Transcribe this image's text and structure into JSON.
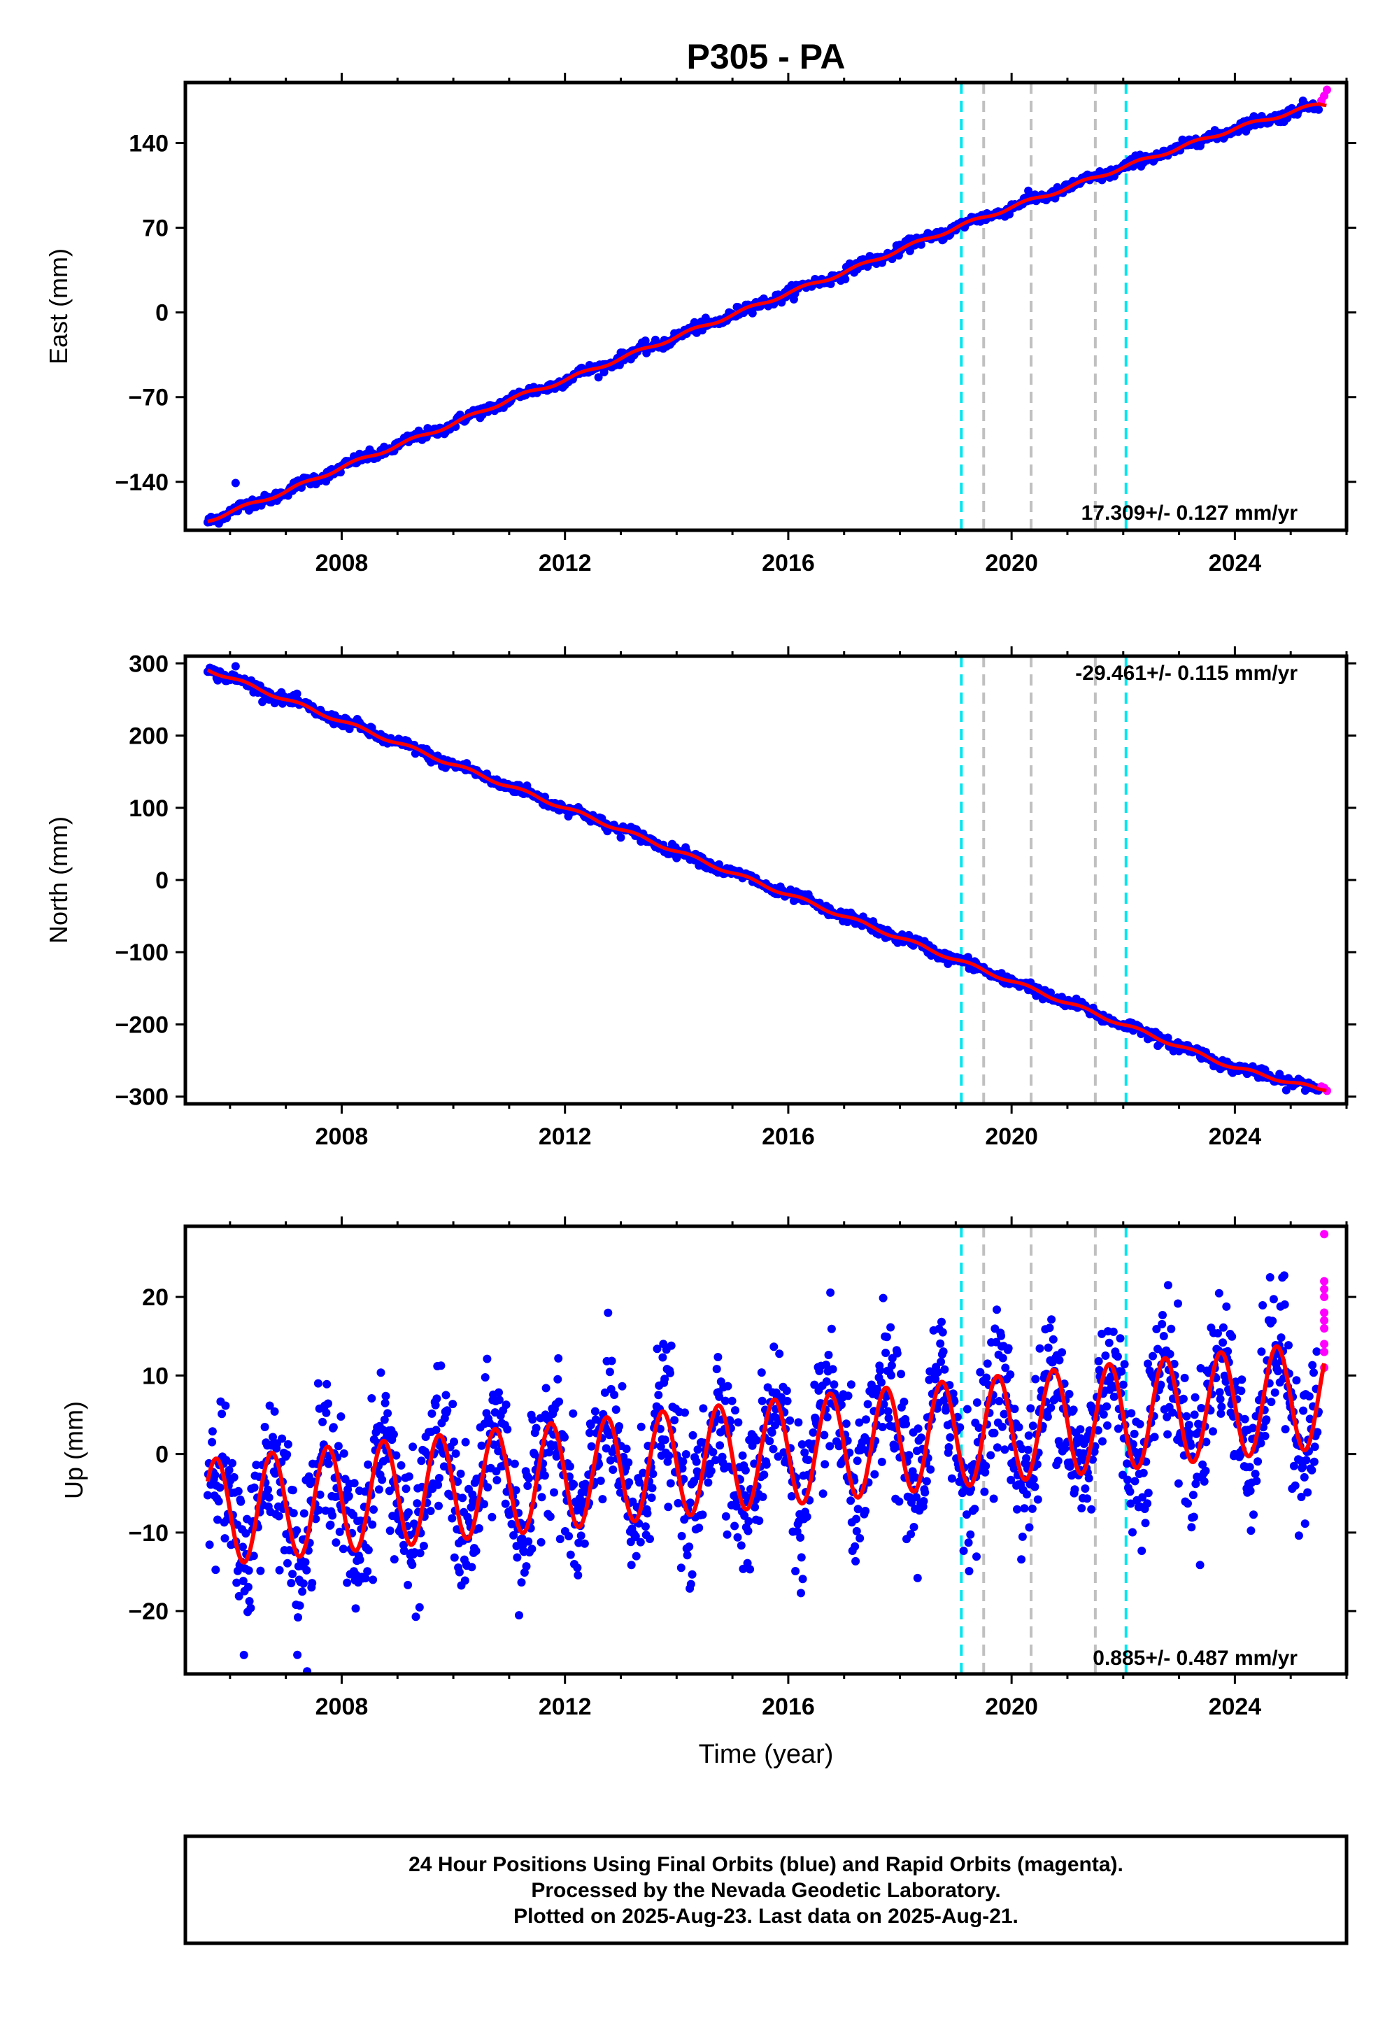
{
  "figure": {
    "title": "P305 - PA",
    "xlabel": "Time (year)",
    "caption_lines": [
      "24 Hour Positions Using Final Orbits (blue) and Rapid Orbits (magenta).",
      "Processed by the Nevada Geodetic Laboratory.",
      "Plotted on 2025-Aug-23. Last data on 2025-Aug-21."
    ]
  },
  "colors": {
    "final_orbits": "#0000ff",
    "rapid_orbits": "#ff00ff",
    "model_fit": "#ff0000",
    "equipment_change": "#00e5ee",
    "other_event": "#c0c0c0"
  },
  "chart_data": [
    {
      "type": "scatter",
      "id": "east",
      "ylabel": "East (mm)",
      "rate_label": "17.309+/- 0.127 mm/yr",
      "xlim": [
        2005.2,
        2026.0
      ],
      "ylim": [
        -180,
        190
      ],
      "xticks": [
        2008,
        2012,
        2016,
        2020,
        2024
      ],
      "yticks": [
        -140,
        -70,
        0,
        70,
        140
      ],
      "grid": false,
      "series": [
        {
          "name": "Final Orbits",
          "color": "#0000ff",
          "x": [
            2005.6,
            2006.0,
            2007.0,
            2008.0,
            2009.0,
            2010.0,
            2011.0,
            2012.0,
            2013.0,
            2014.0,
            2015.0,
            2016.0,
            2017.0,
            2018.0,
            2019.0,
            2020.0,
            2021.0,
            2022.0,
            2023.0,
            2024.0,
            2025.5
          ],
          "y": [
            -172,
            -165,
            -148,
            -128,
            -110,
            -92,
            -72,
            -56,
            -38,
            -20,
            -2,
            16,
            33,
            52,
            70,
            87,
            103,
            120,
            136,
            152,
            172
          ]
        },
        {
          "name": "Rapid Orbits",
          "color": "#ff00ff",
          "x": [
            2025.55,
            2025.6,
            2025.65
          ],
          "y": [
            175,
            179,
            184
          ]
        },
        {
          "name": "Model",
          "color": "#ff0000",
          "x": [
            2005.6,
            2025.65
          ],
          "y": [
            -172,
            174
          ]
        }
      ],
      "outliers": [
        {
          "x": 2006.1,
          "y": -141
        }
      ]
    },
    {
      "type": "scatter",
      "id": "north",
      "ylabel": "North (mm)",
      "rate_label": "-29.461+/- 0.115 mm/yr",
      "xlim": [
        2005.2,
        2026.0
      ],
      "ylim": [
        -310,
        310
      ],
      "xticks": [
        2008,
        2012,
        2016,
        2020,
        2024
      ],
      "yticks": [
        -300,
        -200,
        -100,
        0,
        100,
        200,
        300
      ],
      "grid": false,
      "series": [
        {
          "name": "Final Orbits",
          "color": "#0000ff",
          "x": [
            2005.6,
            2006.0,
            2007.0,
            2008.0,
            2009.0,
            2010.0,
            2011.0,
            2012.0,
            2013.0,
            2014.0,
            2015.0,
            2016.0,
            2017.0,
            2018.0,
            2019.0,
            2020.0,
            2021.0,
            2022.0,
            2023.0,
            2024.0,
            2025.5
          ],
          "y": [
            292,
            280,
            250,
            220,
            190,
            160,
            130,
            100,
            70,
            40,
            10,
            -20,
            -50,
            -80,
            -110,
            -140,
            -170,
            -200,
            -230,
            -260,
            -290
          ]
        },
        {
          "name": "Rapid Orbits",
          "color": "#ff00ff",
          "x": [
            2025.55,
            2025.6,
            2025.65
          ],
          "y": [
            -286,
            -288,
            -292
          ]
        },
        {
          "name": "Model",
          "color": "#ff0000",
          "x": [
            2005.6,
            2025.65
          ],
          "y": [
            292,
            -292
          ]
        }
      ],
      "outliers": [
        {
          "x": 2006.1,
          "y": 296
        }
      ]
    },
    {
      "type": "scatter",
      "id": "up",
      "ylabel": "Up (mm)",
      "rate_label": "0.885+/- 0.487 mm/yr",
      "xlim": [
        2005.2,
        2026.0
      ],
      "ylim": [
        -28,
        29
      ],
      "xticks": [
        2008,
        2012,
        2016,
        2020,
        2024
      ],
      "yticks": [
        -20,
        -10,
        0,
        10,
        20
      ],
      "grid": false,
      "model": {
        "amplitude_mm": 6.8,
        "offset_mm": -7.5,
        "rate_mm_per_yr": 0.885,
        "peak_phase_year": 0.75
      },
      "series": [
        {
          "name": "Final Orbits",
          "color": "#0000ff",
          "x_range": [
            2005.6,
            2025.5
          ],
          "scatter_sd_mm": 4.5
        },
        {
          "name": "Rapid Orbits",
          "color": "#ff00ff",
          "x": [
            2025.6,
            2025.6,
            2025.6,
            2025.6,
            2025.6,
            2025.6,
            2025.6,
            2025.6,
            2025.6,
            2025.6
          ],
          "y": [
            28,
            22,
            21,
            20,
            18,
            17,
            16,
            14,
            13,
            11
          ]
        },
        {
          "name": "Model",
          "color": "#ff0000"
        }
      ]
    }
  ],
  "events": [
    {
      "year": 2019.1,
      "kind": "equipment_change"
    },
    {
      "year": 2019.5,
      "kind": "other_event"
    },
    {
      "year": 2020.35,
      "kind": "other_event"
    },
    {
      "year": 2021.5,
      "kind": "other_event"
    },
    {
      "year": 2022.05,
      "kind": "equipment_change"
    }
  ]
}
